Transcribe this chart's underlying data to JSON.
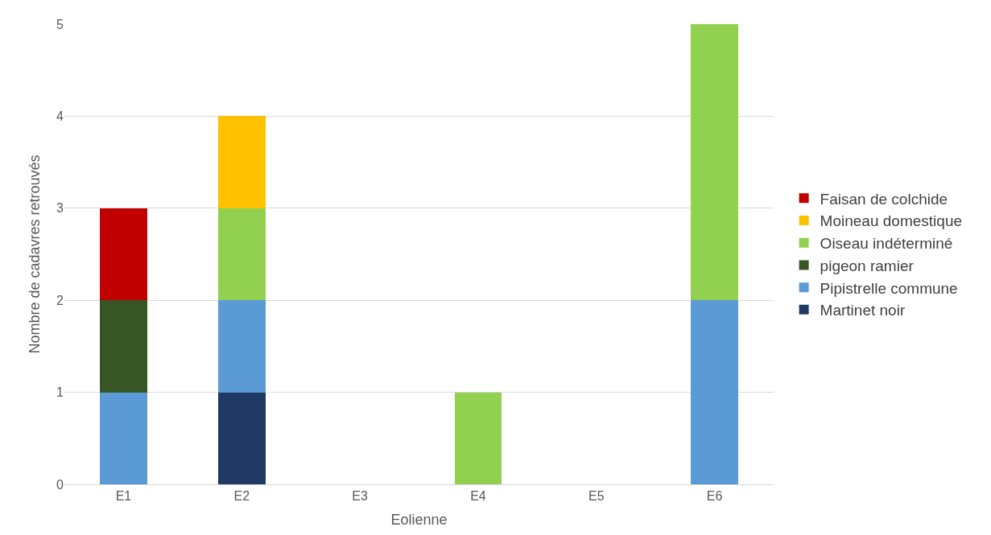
{
  "chart_data": {
    "type": "bar",
    "stacked": true,
    "xlabel": "Eolienne",
    "ylabel": "Nombre de cadavres retrouvés",
    "categories": [
      "E1",
      "E2",
      "E3",
      "E4",
      "E5",
      "E6"
    ],
    "series": [
      {
        "name": "Martinet noir",
        "color": "#203864",
        "values": [
          0,
          1,
          0,
          0,
          0,
          0
        ]
      },
      {
        "name": "Pipistrelle commune",
        "color": "#5b9bd5",
        "values": [
          1,
          1,
          0,
          0,
          0,
          2
        ]
      },
      {
        "name": "pigeon ramier",
        "color": "#375623",
        "values": [
          1,
          0,
          0,
          0,
          0,
          0
        ]
      },
      {
        "name": "Oiseau indéterminé",
        "color": "#92d050",
        "values": [
          0,
          1,
          0,
          1,
          0,
          3
        ]
      },
      {
        "name": "Moineau domestique",
        "color": "#ffc000",
        "values": [
          0,
          1,
          0,
          0,
          0,
          0
        ]
      },
      {
        "name": "Faisan de colchide",
        "color": "#c00000",
        "values": [
          1,
          0,
          0,
          0,
          0,
          0
        ]
      }
    ],
    "ylim": [
      0,
      5
    ],
    "yticks": [
      0,
      1,
      2,
      3,
      4,
      5
    ],
    "grid": "y",
    "legend": "right"
  }
}
